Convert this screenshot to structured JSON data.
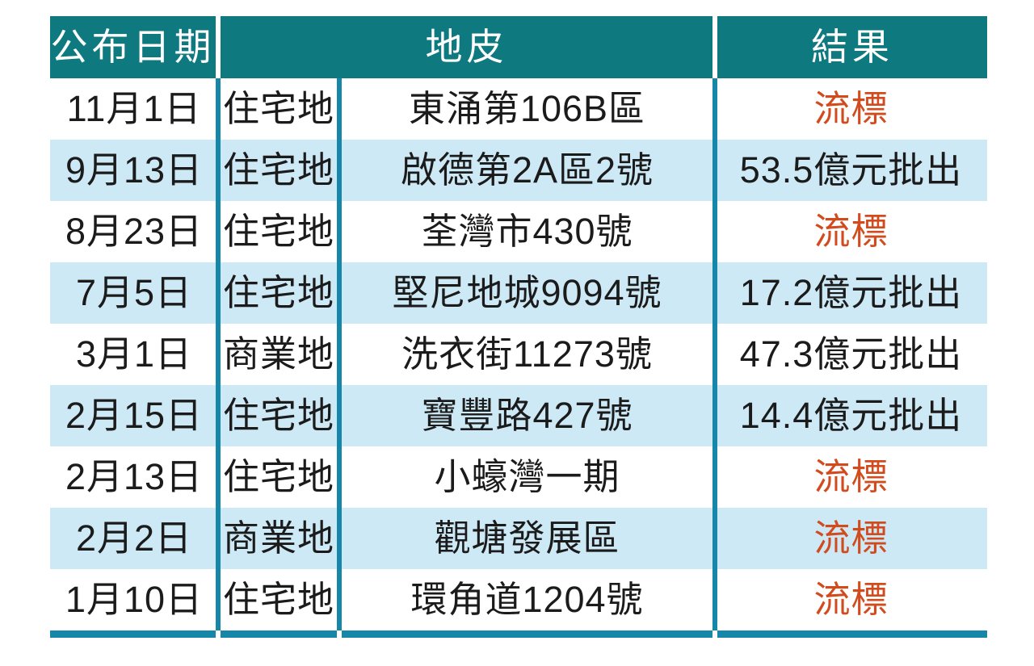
{
  "chart_data": {
    "type": "table",
    "headers": {
      "date": "公布日期",
      "site": "地皮",
      "result": "結果"
    },
    "rows": [
      {
        "date": "11月1日",
        "type": "住宅地",
        "site": "東涌第106B區",
        "result": "流標",
        "status": "failed"
      },
      {
        "date": "9月13日",
        "type": "住宅地",
        "site": "啟德第2A區2號",
        "result": "53.5億元批出",
        "status": "awarded"
      },
      {
        "date": "8月23日",
        "type": "住宅地",
        "site": "荃灣市430號",
        "result": "流標",
        "status": "failed"
      },
      {
        "date": "7月5日",
        "type": "住宅地",
        "site": "堅尼地城9094號",
        "result": "17.2億元批出",
        "status": "awarded"
      },
      {
        "date": "3月1日",
        "type": "商業地",
        "site": "洗衣街11273號",
        "result": "47.3億元批出",
        "status": "awarded"
      },
      {
        "date": "2月15日",
        "type": "住宅地",
        "site": "寶豐路427號",
        "result": "14.4億元批出",
        "status": "awarded"
      },
      {
        "date": "2月13日",
        "type": "住宅地",
        "site": "小蠔灣一期",
        "result": "流標",
        "status": "failed"
      },
      {
        "date": "2月2日",
        "type": "商業地",
        "site": "觀塘發展區",
        "result": "流標",
        "status": "failed"
      },
      {
        "date": "1月10日",
        "type": "住宅地",
        "site": "環角道1204號",
        "result": "流標",
        "status": "failed"
      }
    ]
  },
  "colors": {
    "header_bg": "#0e7a80",
    "header_text": "#ffffff",
    "row_alt_bg": "#cde9f6",
    "row_bg": "#ffffff",
    "divider": "#1787a9",
    "result_failed_text": "#d24b1e",
    "body_text": "#1b1b1b"
  }
}
